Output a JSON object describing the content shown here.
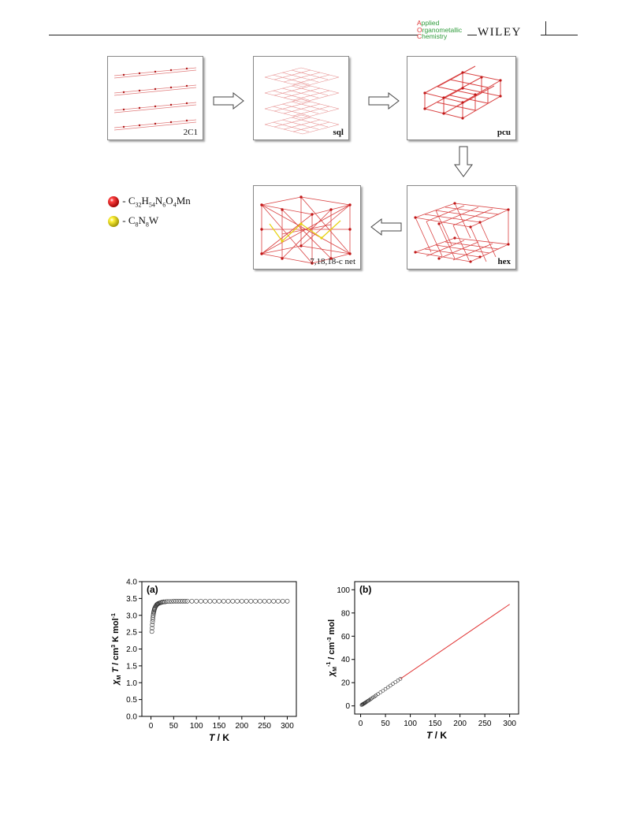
{
  "header": {
    "journal": {
      "line1_cap": "A",
      "line1_rest": "pplied",
      "line2_cap": "O",
      "line2_rest": "rganometallic",
      "line3_cap": "C",
      "line3_rest": "hemistry"
    },
    "publisher": "WILEY"
  },
  "figure": {
    "panels": [
      {
        "id": "2c1",
        "label": "2C1"
      },
      {
        "id": "sql",
        "label": "sql"
      },
      {
        "id": "pcu",
        "label": "pcu"
      },
      {
        "id": "hex",
        "label": "hex"
      },
      {
        "id": "net",
        "label": "7,18,18-c net"
      }
    ],
    "legend": [
      {
        "color": "#e01010",
        "dash": "- ",
        "formula": [
          "C",
          "32",
          "H",
          "54",
          "N",
          "6",
          "O",
          "4",
          "Mn"
        ]
      },
      {
        "color": "#f2ee10",
        "dash": "- ",
        "formula": [
          "C",
          "8",
          "N",
          "8",
          "W"
        ]
      }
    ]
  },
  "chart_data": [
    {
      "type": "scatter",
      "panel_label": "(a)",
      "xlabel": "T / K",
      "ylabel": "χMT / cm3 K mol-1",
      "xlim": [
        -20,
        320
      ],
      "ylim": [
        0,
        4.0
      ],
      "xticks": [
        0,
        50,
        100,
        150,
        200,
        250,
        300
      ],
      "yticks": [
        0.0,
        0.5,
        1.0,
        1.5,
        2.0,
        2.5,
        3.0,
        3.5,
        4.0
      ],
      "ytick_labels": [
        "0.0",
        "0.5",
        "1.0",
        "1.5",
        "2.0",
        "2.5",
        "3.0",
        "3.5",
        "4.0"
      ],
      "x": [
        2,
        2.5,
        3,
        3.5,
        4,
        4.5,
        5,
        5.5,
        6,
        6.5,
        7,
        7.5,
        8,
        9,
        10,
        11,
        12,
        13,
        14,
        15,
        16,
        18,
        20,
        22,
        25,
        28,
        31,
        35,
        40,
        45,
        50,
        55,
        60,
        65,
        70,
        75,
        80,
        90,
        100,
        110,
        120,
        130,
        140,
        150,
        160,
        170,
        180,
        190,
        200,
        210,
        220,
        230,
        240,
        250,
        260,
        270,
        280,
        290,
        300
      ],
      "y": [
        2.52,
        2.62,
        2.72,
        2.81,
        2.88,
        2.94,
        3.0,
        3.05,
        3.09,
        3.12,
        3.15,
        3.18,
        3.2,
        3.23,
        3.26,
        3.28,
        3.3,
        3.32,
        3.33,
        3.34,
        3.35,
        3.36,
        3.37,
        3.38,
        3.39,
        3.4,
        3.4,
        3.41,
        3.41,
        3.41,
        3.42,
        3.42,
        3.42,
        3.42,
        3.42,
        3.42,
        3.42,
        3.42,
        3.42,
        3.42,
        3.42,
        3.42,
        3.42,
        3.42,
        3.42,
        3.42,
        3.42,
        3.42,
        3.42,
        3.42,
        3.42,
        3.42,
        3.42,
        3.42,
        3.42,
        3.42,
        3.42,
        3.42,
        3.42
      ]
    },
    {
      "type": "scatter",
      "panel_label": "(b)",
      "xlabel": "T / K",
      "ylabel": "χM-1 / cm-3 mol",
      "xlim": [
        -12,
        318
      ],
      "ylim": [
        -7,
        107
      ],
      "xticks": [
        0,
        50,
        100,
        150,
        200,
        250,
        300
      ],
      "yticks": [
        0,
        20,
        40,
        60,
        80,
        100
      ],
      "ytick_labels": [
        "0",
        "20",
        "40",
        "60",
        "80",
        "100"
      ],
      "x": [
        2,
        3,
        4,
        5,
        6,
        7,
        8,
        9,
        10,
        12,
        14,
        16,
        18,
        20,
        22,
        25,
        28,
        31,
        35,
        40,
        45,
        50,
        55,
        60,
        65,
        70,
        75,
        80
      ],
      "y": [
        0.8,
        1.1,
        1.4,
        1.6,
        1.9,
        2.1,
        2.4,
        2.6,
        2.9,
        3.5,
        4.1,
        4.6,
        5.2,
        5.8,
        6.4,
        7.3,
        8.1,
        9.0,
        10.2,
        11.7,
        13.1,
        14.6,
        16.0,
        17.5,
        19.0,
        20.4,
        21.9,
        23.3
      ],
      "fit_line": {
        "color": "#e03030",
        "x": [
          80,
          300
        ],
        "y": [
          23.3,
          87.5
        ]
      }
    }
  ]
}
